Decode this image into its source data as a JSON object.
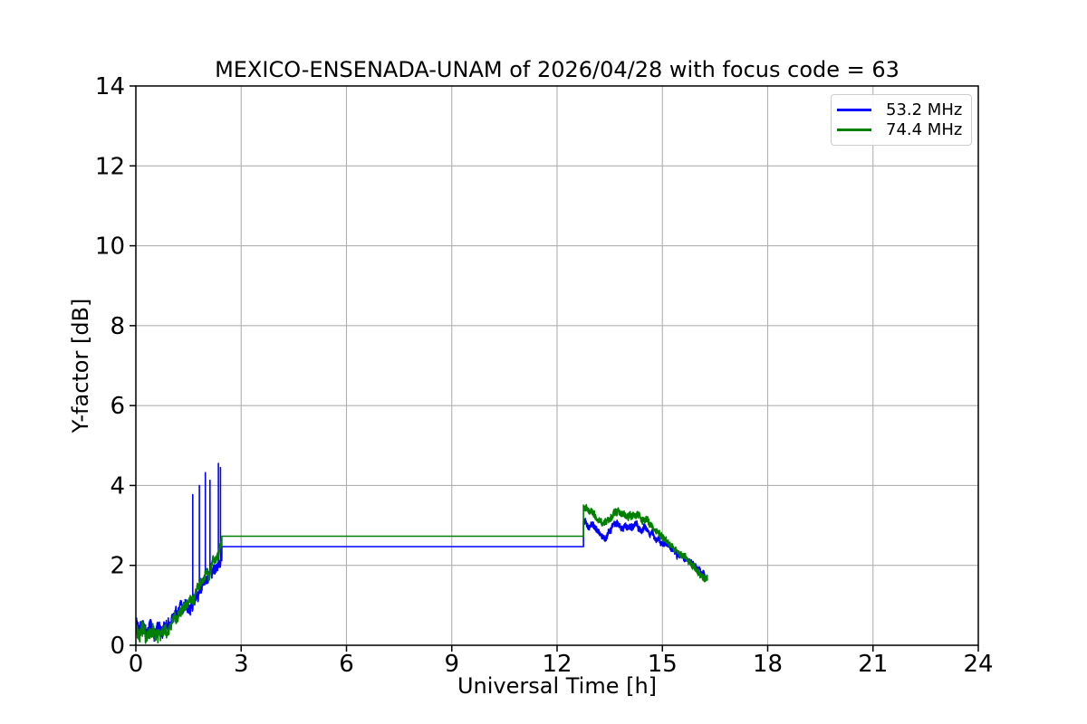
{
  "figure": {
    "background": "#ffffff"
  },
  "chart_data": {
    "type": "line",
    "title": "MEXICO-ENSENADA-UNAM of 2026/04/28 with focus code = 63",
    "xlabel": "Universal Time [h]",
    "ylabel": "Y-factor [dB]",
    "xlim": [
      0,
      24
    ],
    "ylim": [
      0,
      14
    ],
    "xticks": [
      0,
      3,
      6,
      9,
      12,
      15,
      18,
      21,
      24
    ],
    "yticks": [
      0,
      2,
      4,
      6,
      8,
      10,
      12,
      14
    ],
    "grid": true,
    "grid_color": "#b0b0b0",
    "axis_color": "#000000",
    "legend": {
      "position": "upper right",
      "items": [
        {
          "label": "53.2 MHz",
          "color": "#0000ff"
        },
        {
          "label": "74.4 MHz",
          "color": "#008000"
        }
      ]
    },
    "series_segment_format": [
      "x_start_h",
      "x_end_h",
      "y_start_dB",
      "y_end_dB",
      "noise_amplitude_dB"
    ],
    "series": [
      {
        "id": "series-53-2-mhz",
        "name": "53.2 MHz",
        "color": "#0000ff",
        "seed": 42,
        "segments": [
          [
            0.0,
            0.3,
            0.6,
            0.4,
            0.18
          ],
          [
            0.3,
            0.9,
            0.4,
            0.45,
            0.18
          ],
          [
            0.9,
            1.6,
            0.5,
            1.1,
            0.16
          ],
          [
            1.6,
            2.1,
            1.1,
            1.7,
            0.16
          ],
          [
            2.1,
            2.45,
            1.7,
            2.2,
            0.15
          ],
          [
            2.45,
            12.75,
            2.47,
            2.47,
            0
          ],
          [
            12.75,
            13.0,
            3.1,
            3.0,
            0.09
          ],
          [
            13.0,
            13.35,
            3.0,
            2.7,
            0.09
          ],
          [
            13.35,
            13.6,
            2.7,
            3.0,
            0.09
          ],
          [
            13.6,
            14.15,
            3.0,
            3.0,
            0.09
          ],
          [
            14.15,
            14.5,
            3.0,
            2.9,
            0.09
          ],
          [
            14.5,
            15.0,
            2.9,
            2.6,
            0.08
          ],
          [
            15.0,
            15.5,
            2.6,
            2.25,
            0.08
          ],
          [
            15.5,
            16.22,
            2.25,
            1.75,
            0.08
          ]
        ],
        "spikes": [
          [
            1.62,
            3.77
          ],
          [
            1.81,
            4.0
          ],
          [
            1.98,
            4.32
          ],
          [
            2.11,
            4.13
          ],
          [
            2.35,
            4.55
          ],
          [
            2.41,
            4.45
          ]
        ]
      },
      {
        "id": "series-74-4-mhz",
        "name": "74.4 MHz",
        "color": "#008000",
        "seed": 7,
        "segments": [
          [
            0.0,
            0.3,
            0.45,
            0.25,
            0.2
          ],
          [
            0.3,
            0.9,
            0.2,
            0.3,
            0.2
          ],
          [
            0.9,
            1.6,
            0.4,
            1.2,
            0.14
          ],
          [
            1.6,
            2.1,
            1.2,
            1.85,
            0.14
          ],
          [
            2.1,
            2.45,
            1.85,
            2.6,
            0.14
          ],
          [
            2.45,
            12.75,
            2.73,
            2.73,
            0
          ],
          [
            12.75,
            13.0,
            3.45,
            3.35,
            0.1
          ],
          [
            13.0,
            13.35,
            3.35,
            3.0,
            0.1
          ],
          [
            13.35,
            13.6,
            3.0,
            3.35,
            0.1
          ],
          [
            13.6,
            14.15,
            3.35,
            3.3,
            0.1
          ],
          [
            14.15,
            14.5,
            3.3,
            3.15,
            0.1
          ],
          [
            14.5,
            15.0,
            3.15,
            2.75,
            0.09
          ],
          [
            15.0,
            15.5,
            2.75,
            2.3,
            0.09
          ],
          [
            15.5,
            16.28,
            2.3,
            1.62,
            0.09
          ]
        ],
        "spikes": []
      }
    ]
  }
}
